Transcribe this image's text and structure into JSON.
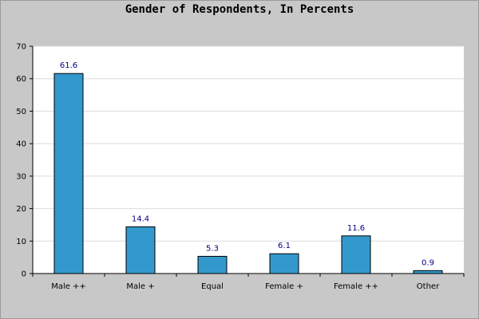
{
  "chart_data": {
    "type": "bar",
    "title": "Gender of Respondents, In Percents",
    "xlabel": "",
    "ylabel": "",
    "categories": [
      "Male ++",
      "Male +",
      "Equal",
      "Female +",
      "Female ++",
      "Other"
    ],
    "values": [
      61.6,
      14.4,
      5.3,
      6.1,
      11.6,
      0.9
    ],
    "value_labels": [
      "61.6",
      "14.4",
      "5.3",
      "6.1",
      "11.6",
      "0.9"
    ],
    "ylim": [
      0,
      70
    ],
    "yticks": [
      0,
      10,
      20,
      30,
      40,
      50,
      60,
      70
    ],
    "grid": true,
    "legend": "none",
    "colors": {
      "bar": "#3399cc",
      "bar_edge": "#000000",
      "value_label": "#000080",
      "plot_bg": "#ffffff",
      "page_bg": "#c8c8c8",
      "grid": "#dcdcdc"
    }
  }
}
